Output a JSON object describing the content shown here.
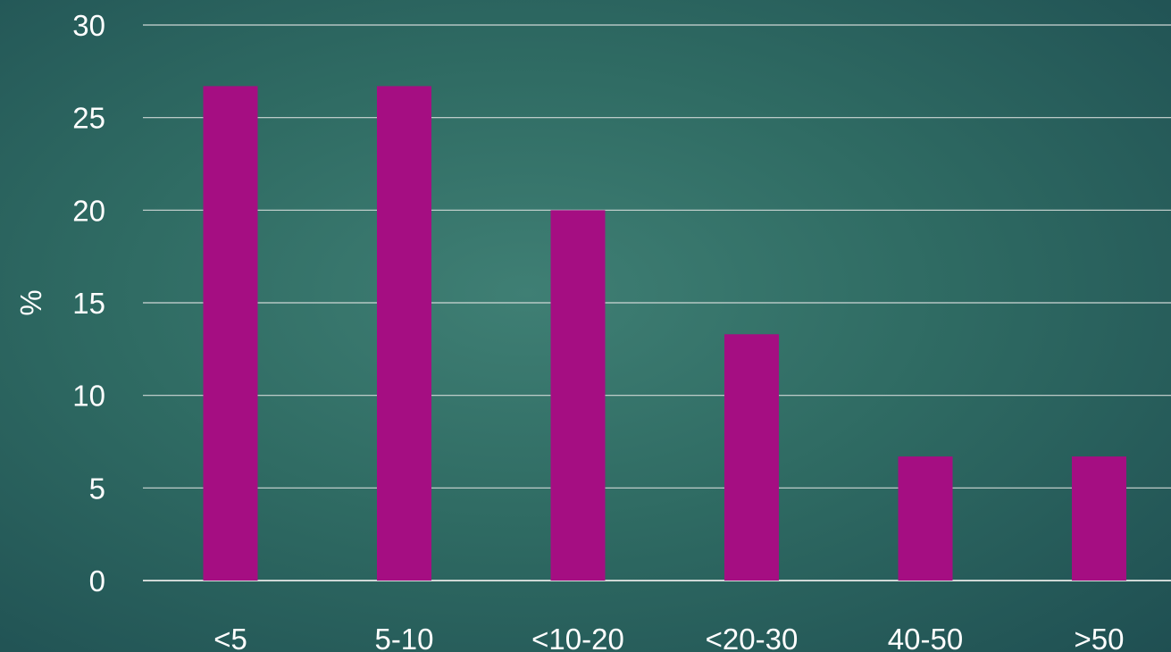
{
  "chart_data": {
    "type": "bar",
    "title": "",
    "xlabel": "",
    "ylabel": "%",
    "categories": [
      "<5",
      "5-10",
      "<10-20",
      "<20-30",
      "40-50",
      ">50"
    ],
    "values": [
      26.7,
      26.7,
      20.0,
      13.3,
      6.7,
      6.7
    ],
    "ylim": [
      0,
      30
    ],
    "yticks": [
      "0",
      "5",
      "10",
      "15",
      "20",
      "25",
      "30"
    ],
    "grid": true,
    "legend": "none",
    "colors": {
      "bar": "#a50e82",
      "grid": "#cfd8d6",
      "text": "#ffffff"
    }
  }
}
